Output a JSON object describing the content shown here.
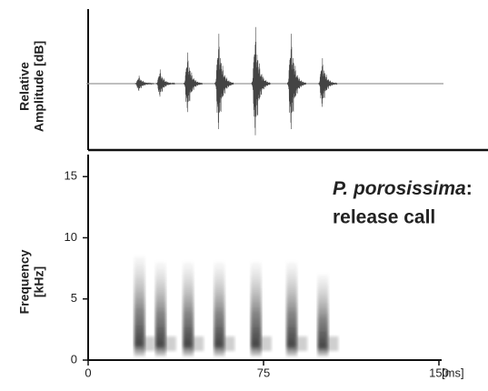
{
  "chart_data": [
    {
      "type": "oscillogram",
      "ylabel": [
        "Relative",
        "Amplitude [dB]"
      ],
      "x": [
        21.6,
        30.6,
        42.4,
        55.7,
        71.4,
        86.7,
        100
      ],
      "values": [
        0.14,
        0.25,
        0.55,
        0.88,
        1.0,
        0.88,
        0.45
      ],
      "xlim": [
        0,
        150
      ],
      "ylim": [
        -1,
        1
      ],
      "color": "#444444"
    },
    {
      "type": "spectrogram",
      "ylabel": [
        "Frequency",
        "[kHz]"
      ],
      "xlabel": "[ms]",
      "annotation": [
        "P. porosissima",
        ":",
        "release call"
      ],
      "x": [
        21.6,
        30.6,
        42.4,
        55.7,
        71.4,
        86.7,
        100
      ],
      "values": [
        8.5,
        8,
        8,
        8,
        8,
        8,
        7
      ],
      "xlim": [
        0,
        150
      ],
      "ylim": [
        0,
        16.8
      ],
      "xticks": [
        0,
        75,
        150
      ],
      "yticks": [
        0,
        5,
        10,
        15
      ],
      "color": "#333333"
    }
  ]
}
